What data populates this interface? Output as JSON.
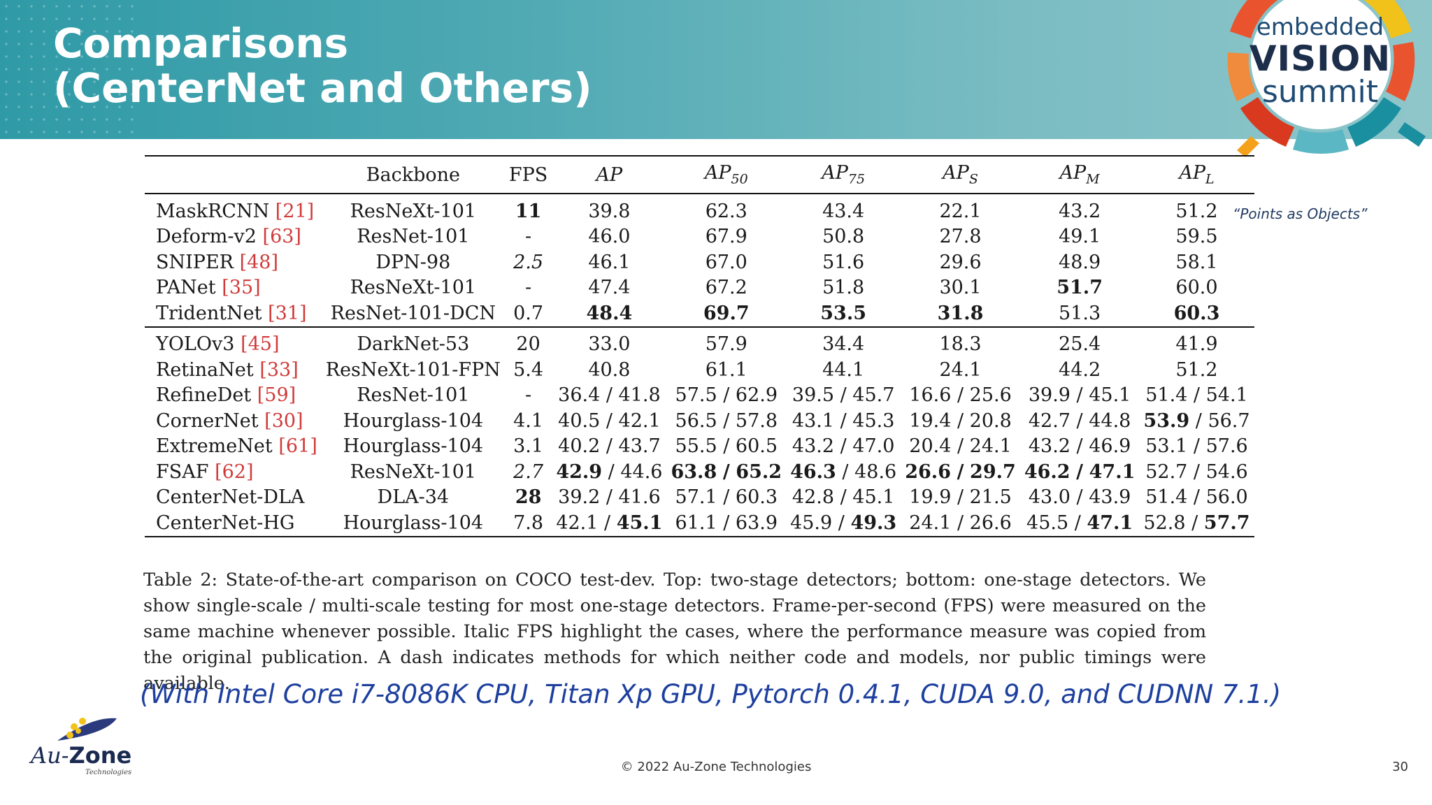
{
  "slide": {
    "title_line1": "Comparisons",
    "title_line2": "(CenterNet and Others)",
    "side_note": "“Points as Objects”",
    "logo": {
      "line1": "embedded",
      "line2": "VISION",
      "line3": "summit"
    },
    "company_logo": {
      "au": "Au-",
      "zone": "Zone",
      "tech": "Technologies"
    },
    "footer": "© 2022 Au-Zone Technologies",
    "page_number": "30",
    "cpu_note": "(With Intel Core i7-8086K CPU, Titan Xp GPU, Pytorch 0.4.1, CUDA 9.0, and CUDNN 7.1.)",
    "caption": "Table 2: State-of-the-art comparison on COCO test-dev. Top: two-stage detectors; bottom: one-stage detectors. We show single-scale / multi-scale testing for most one-stage detectors. Frame-per-second (FPS) were measured on the same machine whenever possible. Italic FPS highlight the cases, where the performance measure was copied from the original publication. A dash indicates methods for which neither code and models, nor public timings were available."
  },
  "table": {
    "headers": {
      "backbone": "Backbone",
      "fps": "FPS",
      "ap": "AP",
      "ap50": {
        "main": "AP",
        "sub": "50"
      },
      "ap75": {
        "main": "AP",
        "sub": "75"
      },
      "aps": {
        "main": "AP",
        "sub": "S"
      },
      "apm": {
        "main": "AP",
        "sub": "M"
      },
      "apl": {
        "main": "AP",
        "sub": "L"
      }
    },
    "top": [
      {
        "name": "MaskRCNN",
        "ref": "[21]",
        "backbone": "ResNeXt-101",
        "fps": "11",
        "ap": "39.8",
        "ap50": "62.3",
        "ap75": "43.4",
        "aps": "22.1",
        "apm": "43.2",
        "apl": "51.2"
      },
      {
        "name": "Deform-v2",
        "ref": "[63]",
        "backbone": "ResNet-101",
        "fps": "-",
        "ap": "46.0",
        "ap50": "67.9",
        "ap75": "50.8",
        "aps": "27.8",
        "apm": "49.1",
        "apl": "59.5"
      },
      {
        "name": "SNIPER",
        "ref": "[48]",
        "backbone": "DPN-98",
        "fps": "2.5",
        "ap": "46.1",
        "ap50": "67.0",
        "ap75": "51.6",
        "aps": "29.6",
        "apm": "48.9",
        "apl": "58.1"
      },
      {
        "name": "PANet",
        "ref": "[35]",
        "backbone": "ResNeXt-101",
        "fps": "-",
        "ap": "47.4",
        "ap50": "67.2",
        "ap75": "51.8",
        "aps": "30.1",
        "apm": "51.7",
        "apl": "60.0"
      },
      {
        "name": "TridentNet",
        "ref": "[31]",
        "backbone": "ResNet-101-DCN",
        "fps": "0.7",
        "ap": "48.4",
        "ap50": "69.7",
        "ap75": "53.5",
        "aps": "31.8",
        "apm": "51.3",
        "apl": "60.3"
      }
    ],
    "bottom": [
      {
        "name": "YOLOv3",
        "ref": "[45]",
        "backbone": "DarkNet-53",
        "fps": "20",
        "ap": "33.0",
        "ap50": "57.9",
        "ap75": "34.4",
        "aps": "18.3",
        "apm": "25.4",
        "apl": "41.9"
      },
      {
        "name": "RetinaNet",
        "ref": "[33]",
        "backbone": "ResNeXt-101-FPN",
        "fps": "5.4",
        "ap": "40.8",
        "ap50": "61.1",
        "ap75": "44.1",
        "aps": "24.1",
        "apm": "44.2",
        "apl": "51.2"
      },
      {
        "name": "RefineDet",
        "ref": "[59]",
        "backbone": "ResNet-101",
        "fps": "-",
        "ap": "36.4 / 41.8",
        "ap50": "57.5 / 62.9",
        "ap75": "39.5 / 45.7",
        "aps": "16.6 / 25.6",
        "apm": "39.9 / 45.1",
        "apl": "51.4 / 54.1"
      },
      {
        "name": "CornerNet",
        "ref": "[30]",
        "backbone": "Hourglass-104",
        "fps": "4.1",
        "ap": "40.5 / 42.1",
        "ap50": "56.5 / 57.8",
        "ap75": "43.1 / 45.3",
        "aps": "19.4 / 20.8",
        "apm": "42.7 / 44.8",
        "apl_a": "53.9",
        "apl_b": "56.7"
      },
      {
        "name": "ExtremeNet",
        "ref": "[61]",
        "backbone": "Hourglass-104",
        "fps": "3.1",
        "ap": "40.2 / 43.7",
        "ap50": "55.5 / 60.5",
        "ap75": "43.2 / 47.0",
        "aps": "20.4 / 24.1",
        "apm": "43.2 / 46.9",
        "apl": "53.1 / 57.6"
      },
      {
        "name": "FSAF",
        "ref": "[62]",
        "backbone": "ResNeXt-101",
        "fps": "2.7",
        "ap_a": "42.9",
        "ap_b": "44.6",
        "ap50_a": "63.8",
        "ap50_b": "65.2",
        "ap75_a": "46.3",
        "ap75_b": "48.6",
        "aps_a": "26.6",
        "aps_b": "29.7",
        "apm_a": "46.2",
        "apm_b": "47.1",
        "apl": "52.7 / 54.6"
      },
      {
        "name": "CenterNet-DLA",
        "ref": "",
        "backbone": "DLA-34",
        "fps": "28",
        "ap": "39.2 / 41.6",
        "ap50": "57.1 / 60.3",
        "ap75": "42.8 / 45.1",
        "aps": "19.9 / 21.5",
        "apm": "43.0 / 43.9",
        "apl": "51.4 / 56.0"
      },
      {
        "name": "CenterNet-HG",
        "ref": "",
        "backbone": "Hourglass-104",
        "fps": "7.8",
        "ap_a": "42.1",
        "ap_b": "45.1",
        "ap50": "61.1 / 63.9",
        "ap75_a": "45.9",
        "ap75_b": "49.3",
        "aps": "24.1 / 26.6",
        "apm_a": "45.5",
        "apm_b": "47.1",
        "apl_a": "52.8",
        "apl_b": "57.7"
      }
    ]
  }
}
